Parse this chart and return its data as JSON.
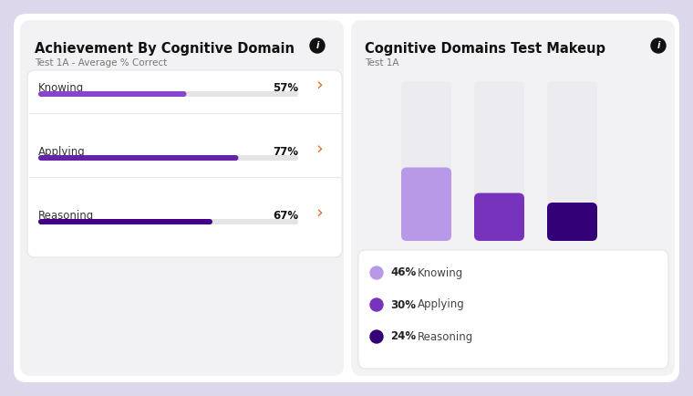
{
  "bg_color": "#dcd7ea",
  "card_color": "#f2f2f4",
  "white": "#ffffff",
  "left_title": "Achievement By Cognitive Domain",
  "left_subtitle": "Test 1A - Average % Correct",
  "right_title": "Cognitive Domains Test Makeup",
  "right_subtitle": "Test 1A",
  "bars": [
    {
      "label": "Knowing",
      "value": 57,
      "color": "#8844cc"
    },
    {
      "label": "Applying",
      "value": 77,
      "color": "#6622aa"
    },
    {
      "label": "Reasoning",
      "value": 67,
      "color": "#440088"
    }
  ],
  "bar_bg_color": "#e4e4e4",
  "arrow_color": "#e07030",
  "chart_bars": [
    {
      "pct": 46,
      "color": "#b899e8",
      "label": "Knowing"
    },
    {
      "pct": 30,
      "color": "#7733bb",
      "label": "Applying"
    },
    {
      "pct": 24,
      "color": "#330077",
      "label": "Reasoning"
    }
  ],
  "chart_bar_bg": "#ebebf0",
  "legend_pcts": [
    "46%",
    "30%",
    "24%"
  ],
  "legend_labels": [
    "Knowing",
    "Applying",
    "Reasoning"
  ],
  "legend_colors": [
    "#b899e8",
    "#7733bb",
    "#330077"
  ]
}
